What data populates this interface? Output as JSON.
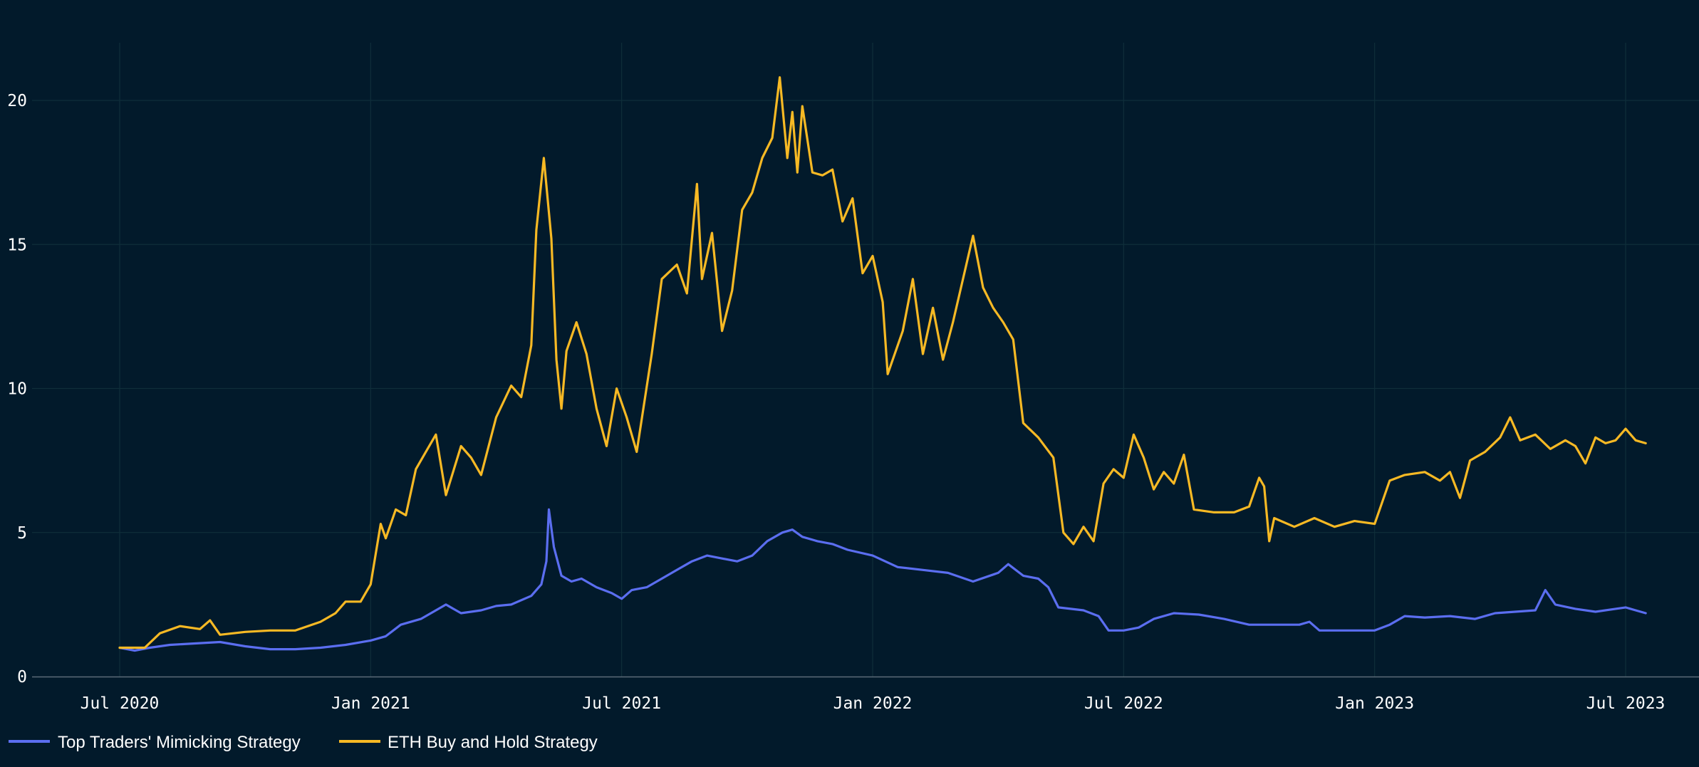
{
  "chart_data": {
    "type": "line",
    "title": "",
    "xlabel": "",
    "ylabel": "",
    "ylim": [
      0,
      22
    ],
    "yticks": [
      0,
      5,
      10,
      15,
      20
    ],
    "xlim": [
      2020.42,
      2023.6
    ],
    "xticks": [
      {
        "label": "Jul 2020",
        "value": 2020.5
      },
      {
        "label": "Jan 2021",
        "value": 2021.0
      },
      {
        "label": "Jul 2021",
        "value": 2021.5
      },
      {
        "label": "Jan 2022",
        "value": 2022.0
      },
      {
        "label": "Jul 2022",
        "value": 2022.5
      },
      {
        "label": "Jan 2023",
        "value": 2023.0
      },
      {
        "label": "Jul 2023",
        "value": 2023.5
      }
    ],
    "grid": true,
    "legend_position": "bottom-left",
    "series": [
      {
        "name": "Top Traders' Mimicking Strategy",
        "color": "#5b6ef0",
        "points": [
          [
            2020.5,
            1.0
          ],
          [
            2020.53,
            0.9
          ],
          [
            2020.56,
            1.0
          ],
          [
            2020.6,
            1.1
          ],
          [
            2020.65,
            1.15
          ],
          [
            2020.7,
            1.2
          ],
          [
            2020.75,
            1.05
          ],
          [
            2020.8,
            0.95
          ],
          [
            2020.85,
            0.95
          ],
          [
            2020.9,
            1.0
          ],
          [
            2020.95,
            1.1
          ],
          [
            2021.0,
            1.25
          ],
          [
            2021.03,
            1.4
          ],
          [
            2021.06,
            1.8
          ],
          [
            2021.1,
            2.0
          ],
          [
            2021.13,
            2.3
          ],
          [
            2021.15,
            2.5
          ],
          [
            2021.18,
            2.2
          ],
          [
            2021.22,
            2.3
          ],
          [
            2021.25,
            2.45
          ],
          [
            2021.28,
            2.5
          ],
          [
            2021.32,
            2.8
          ],
          [
            2021.34,
            3.2
          ],
          [
            2021.35,
            4.0
          ],
          [
            2021.355,
            5.8
          ],
          [
            2021.365,
            4.5
          ],
          [
            2021.38,
            3.5
          ],
          [
            2021.4,
            3.3
          ],
          [
            2021.42,
            3.4
          ],
          [
            2021.45,
            3.1
          ],
          [
            2021.48,
            2.9
          ],
          [
            2021.5,
            2.7
          ],
          [
            2021.52,
            3.0
          ],
          [
            2021.55,
            3.1
          ],
          [
            2021.58,
            3.4
          ],
          [
            2021.61,
            3.7
          ],
          [
            2021.64,
            4.0
          ],
          [
            2021.67,
            4.2
          ],
          [
            2021.7,
            4.1
          ],
          [
            2021.73,
            4.0
          ],
          [
            2021.76,
            4.2
          ],
          [
            2021.79,
            4.7
          ],
          [
            2021.82,
            5.0
          ],
          [
            2021.84,
            5.1
          ],
          [
            2021.86,
            4.85
          ],
          [
            2021.89,
            4.7
          ],
          [
            2021.92,
            4.6
          ],
          [
            2021.95,
            4.4
          ],
          [
            2022.0,
            4.2
          ],
          [
            2022.05,
            3.8
          ],
          [
            2022.1,
            3.7
          ],
          [
            2022.15,
            3.6
          ],
          [
            2022.2,
            3.3
          ],
          [
            2022.25,
            3.6
          ],
          [
            2022.27,
            3.9
          ],
          [
            2022.3,
            3.5
          ],
          [
            2022.33,
            3.4
          ],
          [
            2022.35,
            3.1
          ],
          [
            2022.37,
            2.4
          ],
          [
            2022.42,
            2.3
          ],
          [
            2022.45,
            2.1
          ],
          [
            2022.47,
            1.6
          ],
          [
            2022.5,
            1.6
          ],
          [
            2022.53,
            1.7
          ],
          [
            2022.56,
            2.0
          ],
          [
            2022.6,
            2.2
          ],
          [
            2022.65,
            2.15
          ],
          [
            2022.7,
            2.0
          ],
          [
            2022.75,
            1.8
          ],
          [
            2022.8,
            1.8
          ],
          [
            2022.85,
            1.8
          ],
          [
            2022.87,
            1.9
          ],
          [
            2022.89,
            1.6
          ],
          [
            2022.95,
            1.6
          ],
          [
            2023.0,
            1.6
          ],
          [
            2023.03,
            1.8
          ],
          [
            2023.06,
            2.1
          ],
          [
            2023.1,
            2.05
          ],
          [
            2023.15,
            2.1
          ],
          [
            2023.2,
            2.0
          ],
          [
            2023.24,
            2.2
          ],
          [
            2023.28,
            2.25
          ],
          [
            2023.32,
            2.3
          ],
          [
            2023.34,
            3.0
          ],
          [
            2023.36,
            2.5
          ],
          [
            2023.4,
            2.35
          ],
          [
            2023.44,
            2.25
          ],
          [
            2023.48,
            2.35
          ],
          [
            2023.5,
            2.4
          ],
          [
            2023.52,
            2.3
          ],
          [
            2023.54,
            2.2
          ]
        ]
      },
      {
        "name": "ETH Buy and Hold Strategy",
        "color": "#f7b924",
        "points": [
          [
            2020.5,
            1.0
          ],
          [
            2020.55,
            1.0
          ],
          [
            2020.58,
            1.5
          ],
          [
            2020.62,
            1.75
          ],
          [
            2020.66,
            1.65
          ],
          [
            2020.68,
            1.95
          ],
          [
            2020.7,
            1.45
          ],
          [
            2020.75,
            1.55
          ],
          [
            2020.8,
            1.6
          ],
          [
            2020.85,
            1.6
          ],
          [
            2020.9,
            1.9
          ],
          [
            2020.93,
            2.2
          ],
          [
            2020.95,
            2.6
          ],
          [
            2020.98,
            2.6
          ],
          [
            2021.0,
            3.2
          ],
          [
            2021.02,
            5.3
          ],
          [
            2021.03,
            4.8
          ],
          [
            2021.05,
            5.8
          ],
          [
            2021.07,
            5.6
          ],
          [
            2021.09,
            7.2
          ],
          [
            2021.11,
            7.8
          ],
          [
            2021.13,
            8.4
          ],
          [
            2021.15,
            6.3
          ],
          [
            2021.18,
            8.0
          ],
          [
            2021.2,
            7.6
          ],
          [
            2021.22,
            7.0
          ],
          [
            2021.25,
            9.0
          ],
          [
            2021.28,
            10.1
          ],
          [
            2021.3,
            9.7
          ],
          [
            2021.32,
            11.5
          ],
          [
            2021.33,
            15.5
          ],
          [
            2021.345,
            18.0
          ],
          [
            2021.36,
            15.2
          ],
          [
            2021.37,
            11.0
          ],
          [
            2021.38,
            9.3
          ],
          [
            2021.39,
            11.3
          ],
          [
            2021.41,
            12.3
          ],
          [
            2021.43,
            11.2
          ],
          [
            2021.45,
            9.3
          ],
          [
            2021.47,
            8.0
          ],
          [
            2021.49,
            10.0
          ],
          [
            2021.51,
            9.0
          ],
          [
            2021.53,
            7.8
          ],
          [
            2021.56,
            11.2
          ],
          [
            2021.58,
            13.8
          ],
          [
            2021.61,
            14.3
          ],
          [
            2021.63,
            13.3
          ],
          [
            2021.65,
            17.1
          ],
          [
            2021.66,
            13.8
          ],
          [
            2021.68,
            15.4
          ],
          [
            2021.7,
            12.0
          ],
          [
            2021.72,
            13.4
          ],
          [
            2021.74,
            16.2
          ],
          [
            2021.76,
            16.8
          ],
          [
            2021.78,
            18.0
          ],
          [
            2021.8,
            18.7
          ],
          [
            2021.815,
            20.8
          ],
          [
            2021.83,
            18.0
          ],
          [
            2021.84,
            19.6
          ],
          [
            2021.85,
            17.5
          ],
          [
            2021.86,
            19.8
          ],
          [
            2021.88,
            17.5
          ],
          [
            2021.9,
            17.4
          ],
          [
            2021.92,
            17.6
          ],
          [
            2021.94,
            15.8
          ],
          [
            2021.96,
            16.6
          ],
          [
            2021.98,
            14.0
          ],
          [
            2022.0,
            14.6
          ],
          [
            2022.02,
            13.0
          ],
          [
            2022.03,
            10.5
          ],
          [
            2022.06,
            12.0
          ],
          [
            2022.08,
            13.8
          ],
          [
            2022.1,
            11.2
          ],
          [
            2022.12,
            12.8
          ],
          [
            2022.14,
            11.0
          ],
          [
            2022.16,
            12.3
          ],
          [
            2022.18,
            13.8
          ],
          [
            2022.2,
            15.3
          ],
          [
            2022.22,
            13.5
          ],
          [
            2022.24,
            12.8
          ],
          [
            2022.26,
            12.3
          ],
          [
            2022.28,
            11.7
          ],
          [
            2022.3,
            8.8
          ],
          [
            2022.33,
            8.3
          ],
          [
            2022.36,
            7.6
          ],
          [
            2022.38,
            5.0
          ],
          [
            2022.4,
            4.6
          ],
          [
            2022.42,
            5.2
          ],
          [
            2022.44,
            4.7
          ],
          [
            2022.46,
            6.7
          ],
          [
            2022.48,
            7.2
          ],
          [
            2022.5,
            6.9
          ],
          [
            2022.52,
            8.4
          ],
          [
            2022.54,
            7.6
          ],
          [
            2022.56,
            6.5
          ],
          [
            2022.58,
            7.1
          ],
          [
            2022.6,
            6.7
          ],
          [
            2022.62,
            7.7
          ],
          [
            2022.64,
            5.8
          ],
          [
            2022.68,
            5.7
          ],
          [
            2022.72,
            5.7
          ],
          [
            2022.75,
            5.9
          ],
          [
            2022.77,
            6.9
          ],
          [
            2022.78,
            6.6
          ],
          [
            2022.79,
            4.7
          ],
          [
            2022.8,
            5.5
          ],
          [
            2022.84,
            5.2
          ],
          [
            2022.88,
            5.5
          ],
          [
            2022.92,
            5.2
          ],
          [
            2022.96,
            5.4
          ],
          [
            2023.0,
            5.3
          ],
          [
            2023.03,
            6.8
          ],
          [
            2023.06,
            7.0
          ],
          [
            2023.1,
            7.1
          ],
          [
            2023.13,
            6.8
          ],
          [
            2023.15,
            7.1
          ],
          [
            2023.17,
            6.2
          ],
          [
            2023.19,
            7.5
          ],
          [
            2023.22,
            7.8
          ],
          [
            2023.25,
            8.3
          ],
          [
            2023.27,
            9.0
          ],
          [
            2023.29,
            8.2
          ],
          [
            2023.32,
            8.4
          ],
          [
            2023.35,
            7.9
          ],
          [
            2023.38,
            8.2
          ],
          [
            2023.4,
            8.0
          ],
          [
            2023.42,
            7.4
          ],
          [
            2023.44,
            8.3
          ],
          [
            2023.46,
            8.1
          ],
          [
            2023.48,
            8.2
          ],
          [
            2023.5,
            8.6
          ],
          [
            2023.52,
            8.2
          ],
          [
            2023.54,
            8.1
          ]
        ]
      }
    ]
  }
}
